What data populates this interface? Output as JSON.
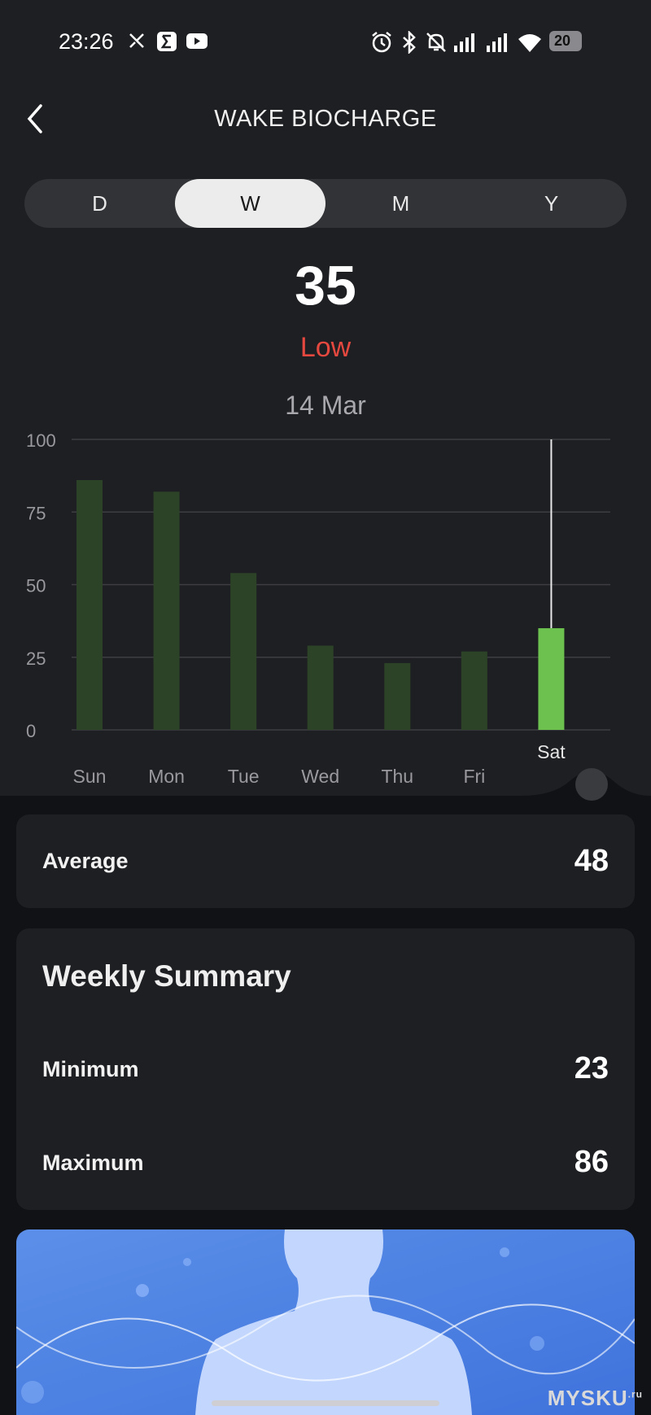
{
  "status_bar": {
    "time": "23:26",
    "battery": "20"
  },
  "header": {
    "title": "WAKE BIOCHARGE"
  },
  "period_tabs": [
    {
      "label": "D",
      "active": false
    },
    {
      "label": "W",
      "active": true
    },
    {
      "label": "M",
      "active": false
    },
    {
      "label": "Y",
      "active": false
    }
  ],
  "summary": {
    "value": "35",
    "level": "Low",
    "level_color": "#e5483f",
    "date": "14 Mar"
  },
  "chart_data": {
    "type": "bar",
    "categories": [
      "Sun",
      "Mon",
      "Tue",
      "Wed",
      "Thu",
      "Fri",
      "Sat"
    ],
    "values": [
      86,
      82,
      54,
      29,
      23,
      27,
      35
    ],
    "selected_index": 6,
    "ylim": [
      0,
      100
    ],
    "yticks": [
      0,
      25,
      50,
      75,
      100
    ],
    "grid": true,
    "bar_color": "#2c4327",
    "selected_bar_color": "#6cc14f"
  },
  "average_card": {
    "label": "Average",
    "value": "48"
  },
  "weekly_summary": {
    "title": "Weekly Summary",
    "minimum": {
      "label": "Minimum",
      "value": "23"
    },
    "maximum": {
      "label": "Maximum",
      "value": "86"
    }
  },
  "watermark": "MYSKU",
  "watermark_suffix": ".ru"
}
